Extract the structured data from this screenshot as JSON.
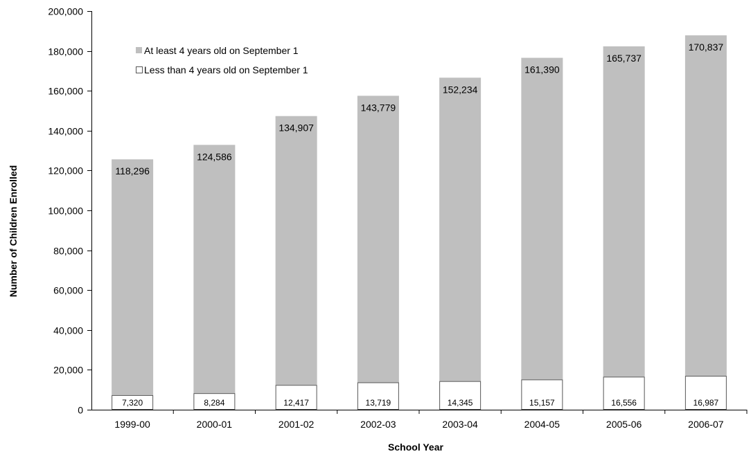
{
  "chart_data": {
    "type": "bar",
    "stacked": true,
    "xlabel": "School Year",
    "ylabel": "Number of Children Enrolled",
    "ylim": [
      0,
      200000
    ],
    "yticks": [
      0,
      20000,
      40000,
      60000,
      80000,
      100000,
      120000,
      140000,
      160000,
      180000,
      200000
    ],
    "ytick_labels": [
      "0",
      "20,000",
      "40,000",
      "60,000",
      "80,000",
      "100,000",
      "120,000",
      "140,000",
      "160,000",
      "180,000",
      "200,000"
    ],
    "categories": [
      "1999-00",
      "2000-01",
      "2001-02",
      "2002-03",
      "2003-04",
      "2004-05",
      "2005-06",
      "2006-07"
    ],
    "series": [
      {
        "name": "Less than 4 years old on September 1",
        "values": [
          7320,
          8284,
          12417,
          13719,
          14345,
          15157,
          16556,
          16987
        ],
        "labels": [
          "7,320",
          "8,284",
          "12,417",
          "13,719",
          "14,345",
          "15,157",
          "16,556",
          "16,987"
        ],
        "color": "#ffffff"
      },
      {
        "name": "At least 4 years old on September 1",
        "values": [
          118296,
          124586,
          134907,
          143779,
          152234,
          161390,
          165737,
          170837
        ],
        "labels": [
          "118,296",
          "124,586",
          "134,907",
          "143,779",
          "152,234",
          "161,390",
          "165,737",
          "170,837"
        ],
        "color": "#bfbfbf"
      }
    ],
    "legend": {
      "position": "top-left",
      "entries": [
        "At least 4 years old on September 1",
        "Less than 4 years old on September 1"
      ]
    },
    "grid": false
  }
}
